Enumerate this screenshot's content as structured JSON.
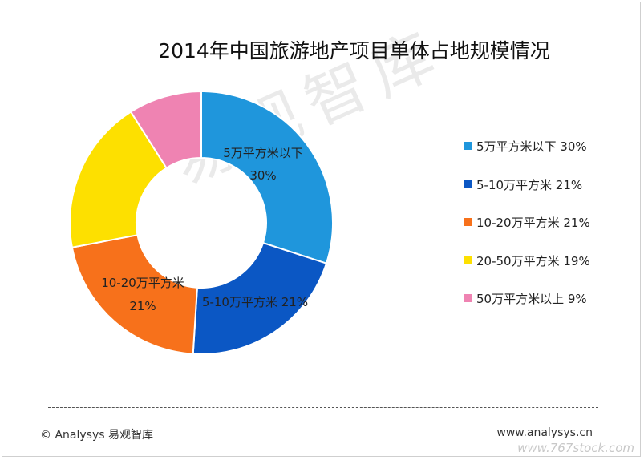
{
  "chart_data": {
    "type": "pie",
    "title": "2014年中国旅游地产项目单体占地规模情况",
    "slices": [
      {
        "label": "5万平方米以下",
        "value": 30,
        "value_label": "30%",
        "color": "#1f96dc",
        "legend_text": "5万平方米以下 30%"
      },
      {
        "label": "5-10万平方米",
        "value": 21,
        "value_label": "21%",
        "color": "#0b57c4",
        "legend_text": "5-10万平方米 21%"
      },
      {
        "label": "10-20万平方米",
        "value": 21,
        "value_label": "21%",
        "color": "#f7711b",
        "legend_text": "10-20万平方米 21%"
      },
      {
        "label": "20-50万平方米",
        "value": 19,
        "value_label": "19%",
        "color": "#fde000",
        "legend_text": "20-50万平方米 19%"
      },
      {
        "label": "50万平方米以上",
        "value": 9,
        "value_label": "9%",
        "color": "#ef83b2",
        "legend_text": "50万平方米以上 9%"
      }
    ],
    "donut": true,
    "legend_position": "right"
  },
  "footer": {
    "left": "© Analysys 易观智库",
    "right": "www.analysys.cn"
  },
  "watermark": "易观智库",
  "corner_watermark": "www.767stock.com"
}
